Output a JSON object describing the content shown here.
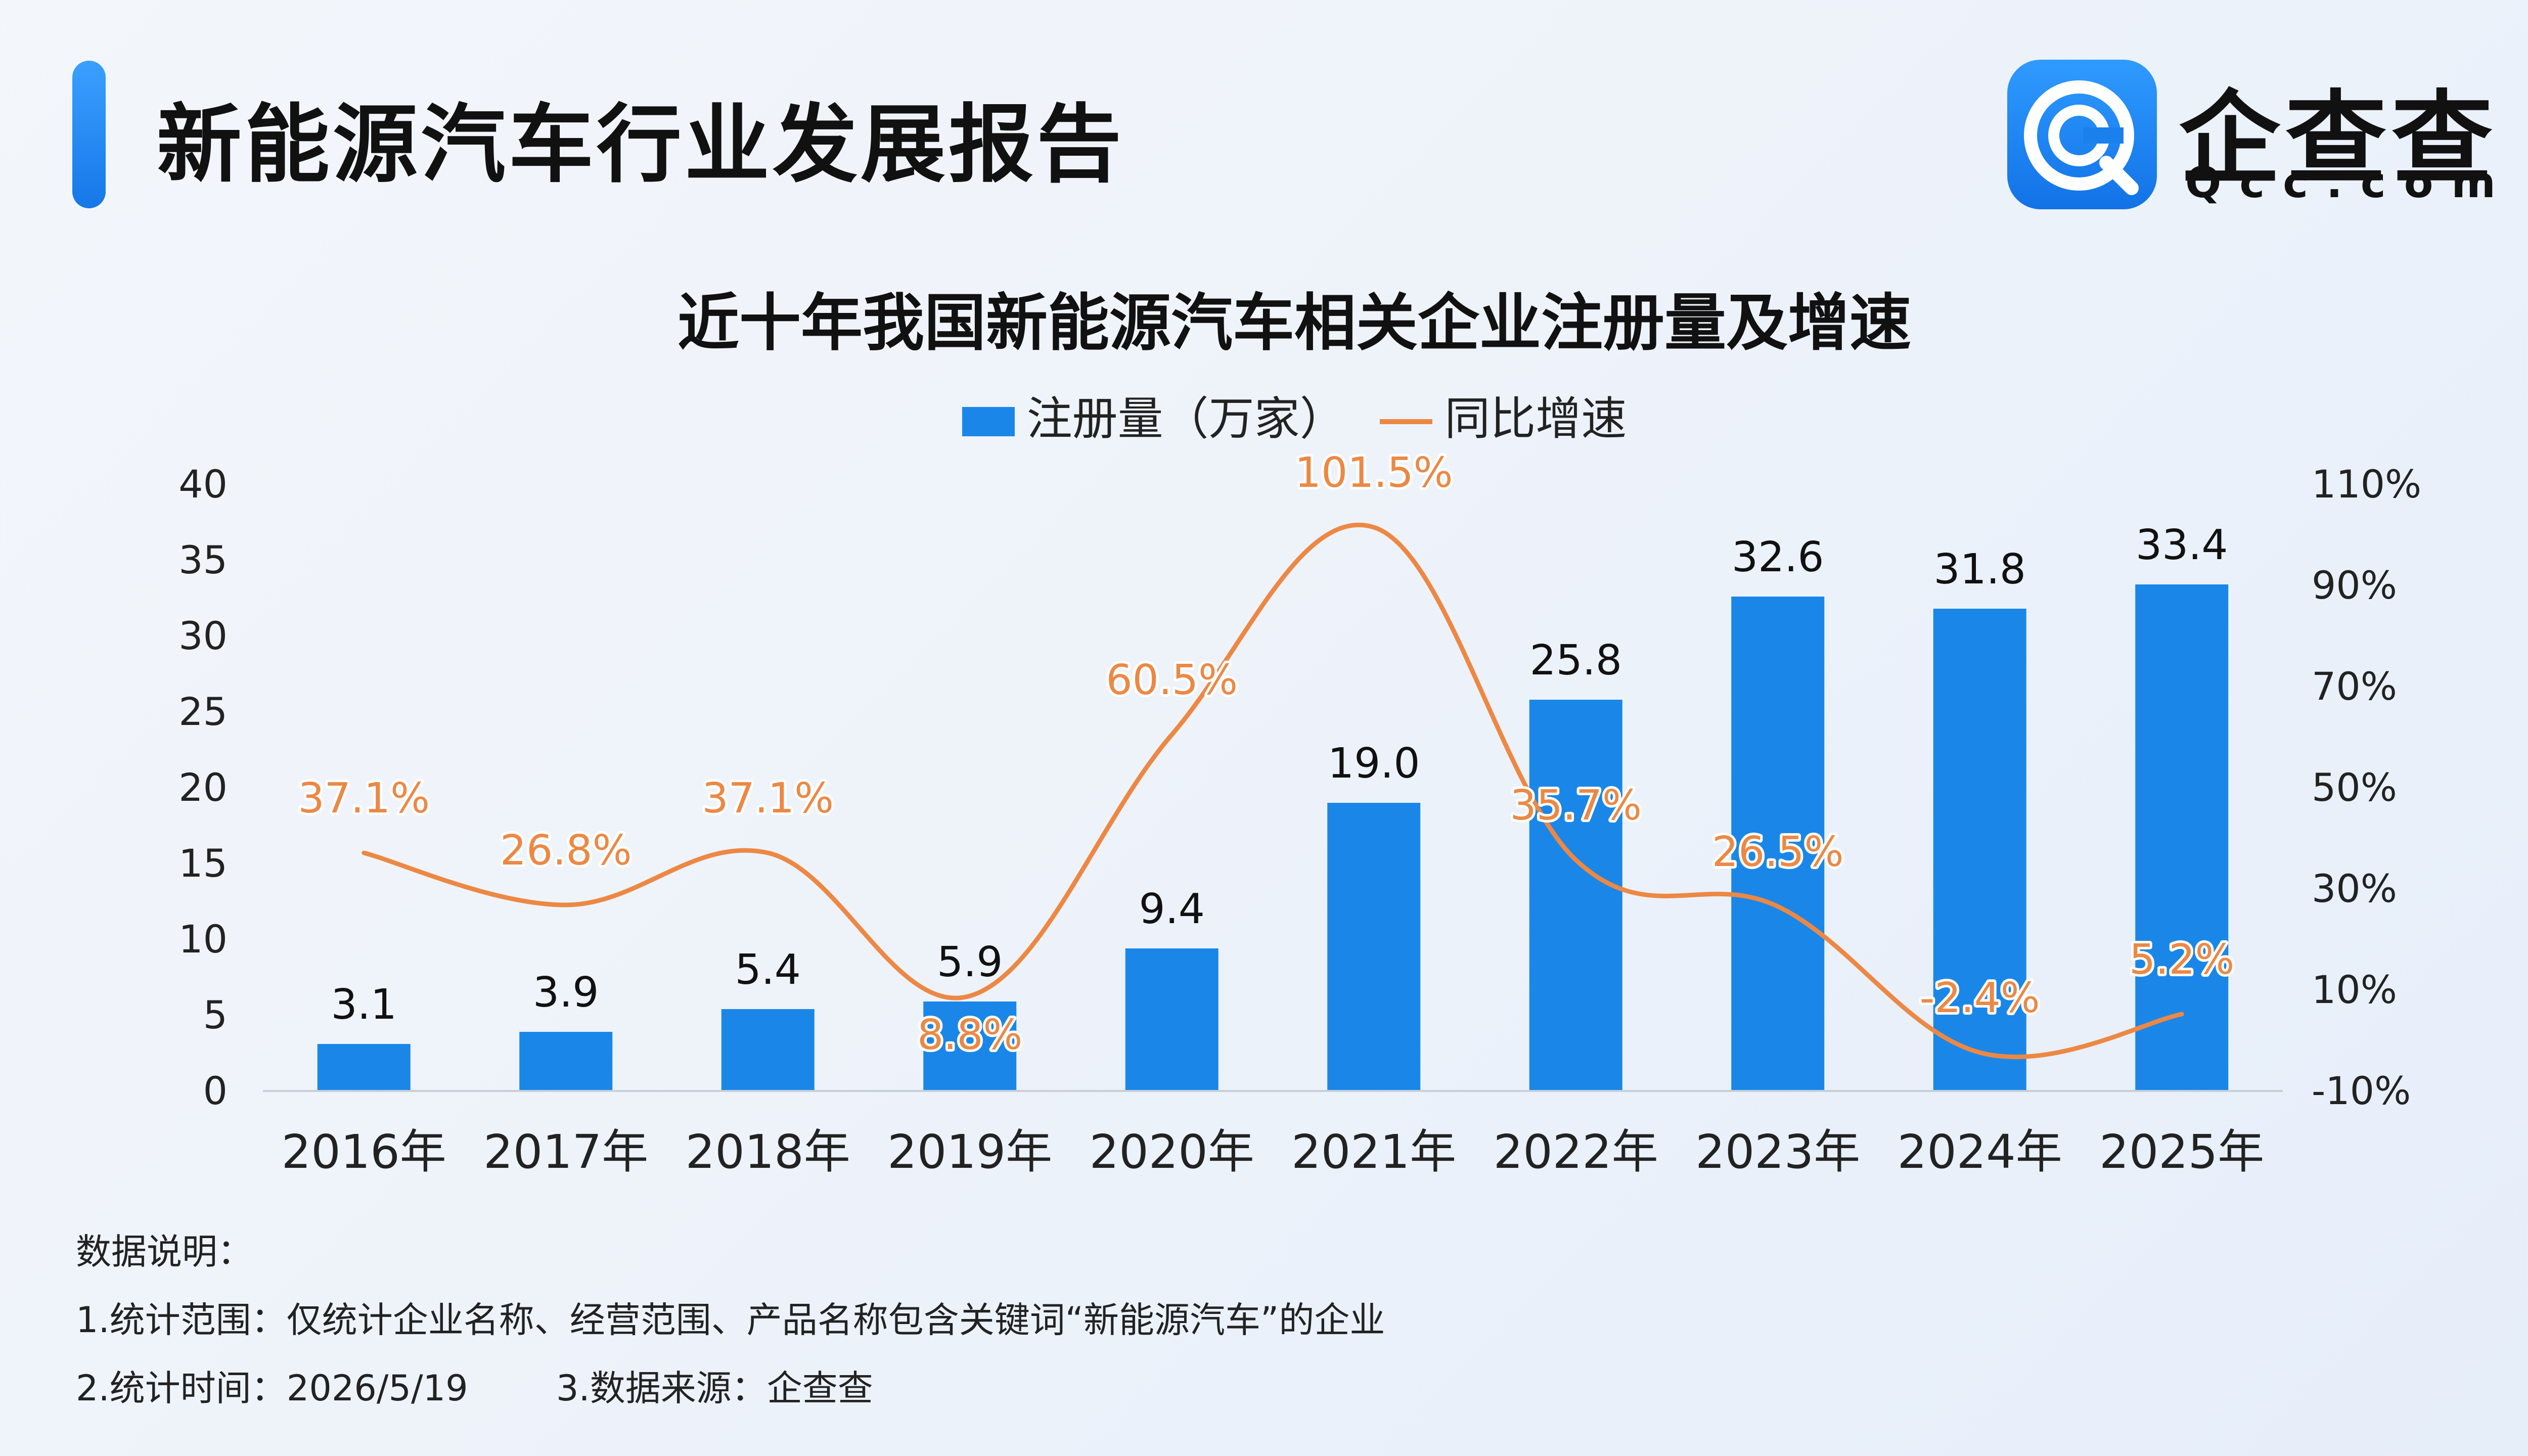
{
  "header": {
    "title": "新能源汽车行业发展报告",
    "brand_name": "企查查",
    "brand_domain": "Qcc.com"
  },
  "legend": {
    "bar_label": "注册量（万家）",
    "line_label": "同比增速"
  },
  "colors": {
    "bar": "#1a87e8",
    "line": "#ec8844",
    "accent": "#1677e8"
  },
  "chart_data": {
    "type": "bar",
    "title": "近十年我国新能源汽车相关企业注册量及增速",
    "categories": [
      "2016年",
      "2017年",
      "2018年",
      "2019年",
      "2020年",
      "2021年",
      "2022年",
      "2023年",
      "2024年",
      "2025年"
    ],
    "series": [
      {
        "name": "注册量（万家）",
        "type": "bar",
        "axis": "left",
        "values": [
          3.1,
          3.9,
          5.4,
          5.9,
          9.4,
          19.0,
          25.8,
          32.6,
          31.8,
          33.4
        ],
        "labels": [
          "3.1",
          "3.9",
          "5.4",
          "5.9",
          "9.4",
          "19.0",
          "25.8",
          "32.6",
          "31.8",
          "33.4"
        ]
      },
      {
        "name": "同比增速",
        "type": "line",
        "axis": "right",
        "values": [
          37.1,
          26.8,
          37.1,
          8.8,
          60.5,
          101.5,
          35.7,
          26.5,
          -2.4,
          5.2
        ],
        "labels": [
          "37.1%",
          "26.8%",
          "37.1%",
          "8.8%",
          "60.5%",
          "101.5%",
          "35.7%",
          "26.5%",
          "-2.4%",
          "5.2%"
        ]
      }
    ],
    "y_left": {
      "ylim": [
        0,
        40
      ],
      "ticks": [
        0,
        5,
        10,
        15,
        20,
        25,
        30,
        35,
        40
      ],
      "tick_labels": [
        "0",
        "5",
        "10",
        "15",
        "20",
        "25",
        "30",
        "35",
        "40"
      ]
    },
    "y_right": {
      "ylim": [
        -10,
        110
      ],
      "ticks": [
        -10,
        10,
        30,
        50,
        70,
        90,
        110
      ],
      "tick_labels": [
        "-10%",
        "10%",
        "30%",
        "50%",
        "70%",
        "90%",
        "110%"
      ]
    },
    "grid": false,
    "legend_position": "top-center"
  },
  "notes": {
    "heading": "数据说明：",
    "line1": "1.统计范围：仅统计企业名称、经营范围、产品名称包含关键词“新能源汽车”的企业",
    "line2a": "2.统计时间：2026/5/19",
    "line2b": "3.数据来源：企查查"
  }
}
